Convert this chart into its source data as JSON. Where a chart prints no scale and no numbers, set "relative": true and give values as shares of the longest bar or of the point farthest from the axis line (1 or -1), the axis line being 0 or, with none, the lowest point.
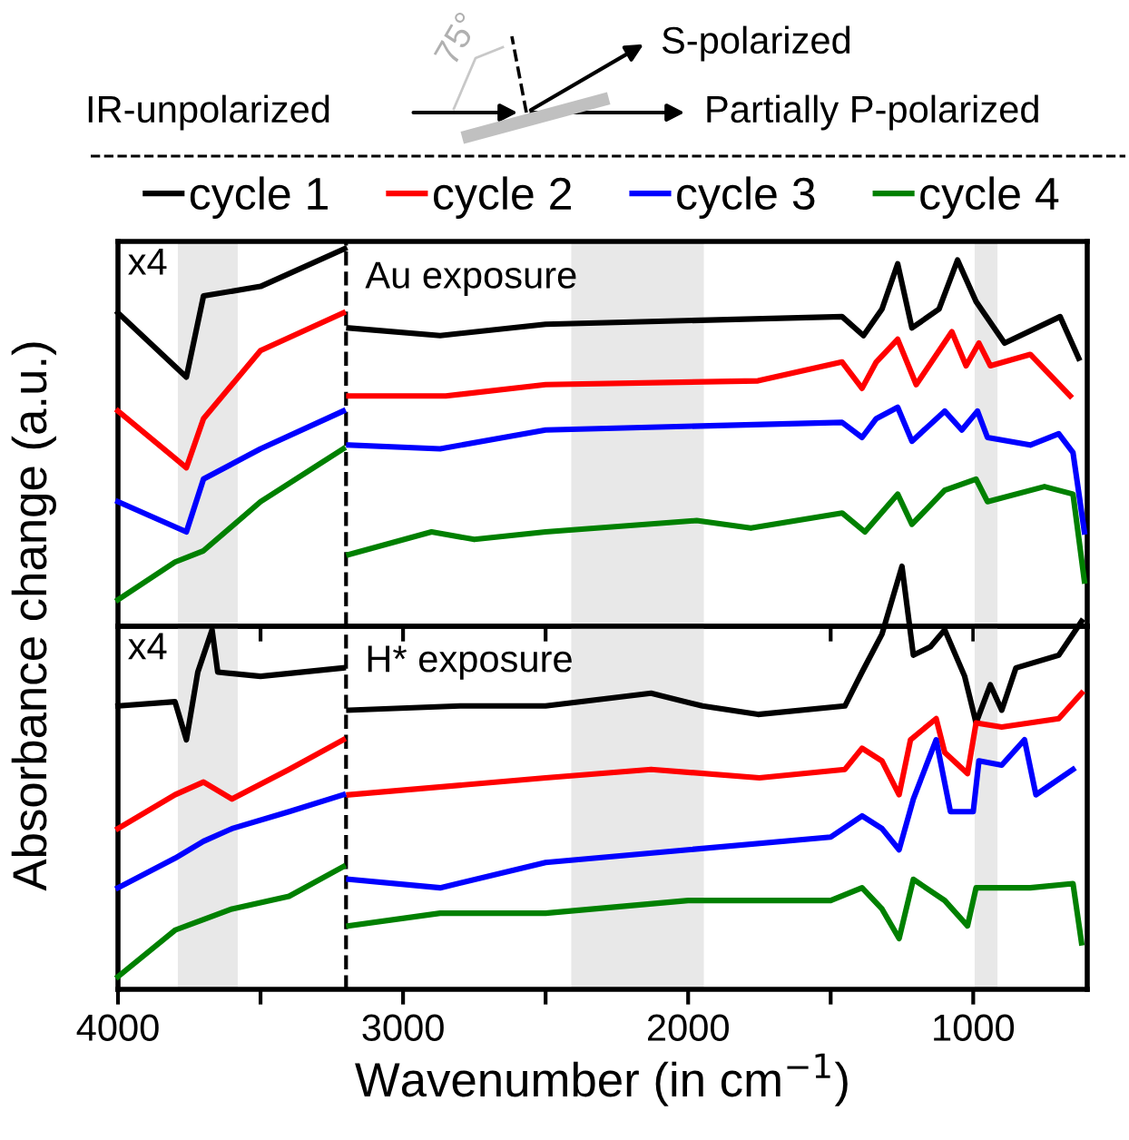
{
  "chart_data": [
    {
      "type": "line",
      "relative": true,
      "xlim": [
        4000,
        600
      ],
      "xticks": [
        4000,
        {
          "value": 3500,
          "label": null
        },
        3000,
        {
          "value": 2500,
          "label": null
        },
        2000,
        {
          "value": 1500,
          "label": null
        },
        1000
      ],
      "tick_labels": false,
      "ylabel": "Absorbance change (a.u.)",
      "legend": "top",
      "line_style": "solid",
      "marker": "none",
      "annotations": [
        "x4",
        "Au exposure",
        "IR-unpolarized",
        "S-polarized",
        "Partially P-polarized",
        "75°"
      ],
      "ref_lines": [
        {
          "axis": "x",
          "value": 3200,
          "label": null,
          "color": "#000000",
          "line_style": "dashed"
        }
      ],
      "bands": [
        {
          "axis": "x",
          "from": 3790,
          "to": 3580,
          "label": null,
          "color": "#e8e8e8"
        },
        {
          "axis": "x",
          "from": 2410,
          "to": 1945,
          "label": null,
          "color": "#e8e8e8"
        },
        {
          "axis": "x",
          "from": 995,
          "to": 915,
          "label": null,
          "color": "#e8e8e8"
        }
      ],
      "series": [
        {
          "name": "cycle 1",
          "color": "#000000",
          "x": [
            4000,
            3760,
            3700,
            3500,
            3205,
            3200,
            3190,
            2870,
            2500,
            1460,
            1385,
            1320,
            1265,
            1215,
            1120,
            1055,
            990,
            890,
            695,
            630
          ],
          "values": [
            0.83,
            0.66,
            0.875,
            0.9,
            1.0,
            null,
            0.79,
            0.77,
            0.8,
            0.82,
            0.77,
            0.84,
            0.96,
            0.79,
            0.84,
            0.97,
            0.86,
            0.75,
            0.82,
            0.71
          ]
        },
        {
          "name": "cycle 2",
          "color": "#ff0000",
          "x": [
            4000,
            3760,
            3700,
            3500,
            3210,
            3200,
            3190,
            2850,
            2500,
            1755,
            1460,
            1390,
            1340,
            1265,
            1200,
            1075,
            1025,
            980,
            940,
            800,
            660
          ],
          "values": [
            0.57,
            0.42,
            0.55,
            0.73,
            0.83,
            null,
            0.61,
            0.61,
            0.64,
            0.65,
            0.7,
            0.63,
            0.7,
            0.76,
            0.64,
            0.78,
            0.69,
            0.75,
            0.69,
            0.72,
            0.61
          ]
        },
        {
          "name": "cycle 3",
          "color": "#0000ff",
          "x": [
            4000,
            3760,
            3700,
            3500,
            3210,
            3200,
            3190,
            2870,
            2500,
            1460,
            1390,
            1340,
            1265,
            1215,
            1100,
            1040,
            985,
            950,
            800,
            700,
            650,
            610
          ],
          "values": [
            0.33,
            0.25,
            0.39,
            0.47,
            0.57,
            null,
            0.48,
            0.47,
            0.52,
            0.54,
            0.5,
            0.55,
            0.58,
            0.49,
            0.57,
            0.52,
            0.57,
            0.5,
            0.48,
            0.51,
            0.46,
            0.25
          ]
        },
        {
          "name": "cycle 4",
          "color": "#008000",
          "x": [
            4000,
            3800,
            3700,
            3500,
            3210,
            3200,
            3190,
            2900,
            2750,
            2500,
            1970,
            1780,
            1460,
            1380,
            1265,
            1215,
            1100,
            990,
            950,
            750,
            650,
            610
          ],
          "values": [
            0.07,
            0.17,
            0.2,
            0.33,
            0.47,
            null,
            0.19,
            0.25,
            0.23,
            0.25,
            0.28,
            0.26,
            0.3,
            0.25,
            0.35,
            0.27,
            0.36,
            0.39,
            0.33,
            0.37,
            0.35,
            0.12
          ]
        }
      ]
    },
    {
      "type": "line",
      "relative": true,
      "xlim": [
        4000,
        600
      ],
      "xticks": [
        4000,
        {
          "value": 3500,
          "label": null
        },
        3000,
        {
          "value": 2500,
          "label": null
        },
        2000,
        {
          "value": 1500,
          "label": null
        },
        1000
      ],
      "tick_labels": "x",
      "xlabel": "Wavenumber (in cm$^{−1}$)",
      "line_style": "solid",
      "marker": "none",
      "annotations": [
        "x4",
        "H* exposure"
      ],
      "ref_lines": [
        {
          "axis": "x",
          "value": 3200,
          "label": null,
          "color": "#000000",
          "line_style": "dashed"
        }
      ],
      "bands": [
        {
          "axis": "x",
          "from": 3790,
          "to": 3580,
          "label": null,
          "color": "#e8e8e8"
        },
        {
          "axis": "x",
          "from": 2410,
          "to": 1945,
          "label": null,
          "color": "#e8e8e8"
        },
        {
          "axis": "x",
          "from": 995,
          "to": 915,
          "label": null,
          "color": "#e8e8e8"
        }
      ],
      "series": [
        {
          "color": "#000000",
          "x": [
            4000,
            3800,
            3760,
            3720,
            3670,
            3650,
            3500,
            3210,
            3200,
            3190,
            2800,
            2500,
            2130,
            1950,
            1755,
            1450,
            1390,
            1320,
            1250,
            1210,
            1150,
            1100,
            1030,
            990,
            940,
            900,
            850,
            700,
            620
          ],
          "values": [
            0.67,
            0.68,
            0.59,
            0.75,
            0.85,
            0.75,
            0.74,
            0.76,
            null,
            0.66,
            0.67,
            0.67,
            0.7,
            0.67,
            0.65,
            0.67,
            0.75,
            0.84,
            1.0,
            0.79,
            0.81,
            0.85,
            0.74,
            0.63,
            0.72,
            0.66,
            0.76,
            0.79,
            0.87
          ]
        },
        {
          "color": "#ff0000",
          "x": [
            4000,
            3800,
            3700,
            3600,
            3400,
            3210,
            3200,
            3190,
            2500,
            2130,
            1750,
            1450,
            1390,
            1320,
            1260,
            1220,
            1130,
            1100,
            1020,
            990,
            900,
            700,
            620
          ],
          "values": [
            0.38,
            0.46,
            0.49,
            0.45,
            0.52,
            0.59,
            null,
            0.46,
            0.5,
            0.52,
            0.5,
            0.52,
            0.57,
            0.54,
            0.46,
            0.59,
            0.64,
            0.56,
            0.51,
            0.63,
            0.62,
            0.64,
            0.7
          ]
        },
        {
          "color": "#0000ff",
          "x": [
            4000,
            3800,
            3700,
            3600,
            3400,
            3210,
            3200,
            3190,
            2870,
            2500,
            2000,
            1500,
            1390,
            1320,
            1260,
            1210,
            1130,
            1080,
            1000,
            980,
            900,
            820,
            780,
            650
          ],
          "values": [
            0.24,
            0.31,
            0.35,
            0.38,
            0.42,
            0.46,
            null,
            0.26,
            0.24,
            0.3,
            0.33,
            0.36,
            0.41,
            0.38,
            0.33,
            0.45,
            0.59,
            0.42,
            0.42,
            0.54,
            0.53,
            0.59,
            0.46,
            0.52
          ]
        },
        {
          "color": "#008000",
          "x": [
            4000,
            3800,
            3600,
            3400,
            3210,
            3200,
            3190,
            2870,
            2500,
            2000,
            1500,
            1390,
            1320,
            1260,
            1210,
            1100,
            1020,
            990,
            800,
            650,
            620
          ],
          "values": [
            0.03,
            0.14,
            0.19,
            0.22,
            0.29,
            null,
            0.15,
            0.18,
            0.18,
            0.21,
            0.21,
            0.24,
            0.19,
            0.12,
            0.26,
            0.21,
            0.15,
            0.24,
            0.24,
            0.25,
            0.11
          ]
        }
      ]
    }
  ]
}
